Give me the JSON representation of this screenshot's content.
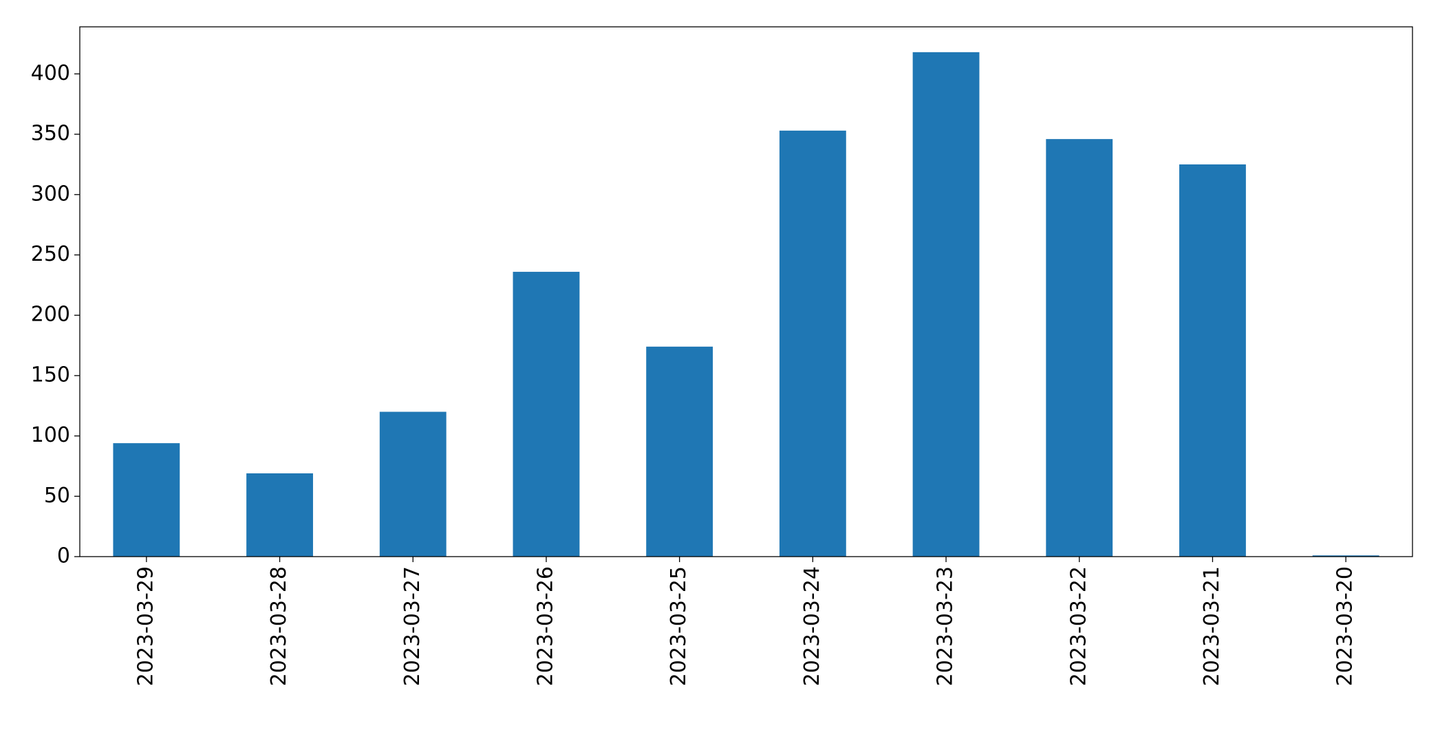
{
  "chart_data": {
    "type": "bar",
    "categories": [
      "2023-03-29",
      "2023-03-28",
      "2023-03-27",
      "2023-03-26",
      "2023-03-25",
      "2023-03-24",
      "2023-03-23",
      "2023-03-22",
      "2023-03-21",
      "2023-03-20"
    ],
    "values": [
      94,
      69,
      120,
      236,
      174,
      353,
      418,
      346,
      325,
      1
    ],
    "color": "#1f77b4",
    "ylim": [
      0,
      439
    ],
    "yticks": [
      0,
      50,
      100,
      150,
      200,
      250,
      300,
      350,
      400
    ],
    "grid": false
  }
}
